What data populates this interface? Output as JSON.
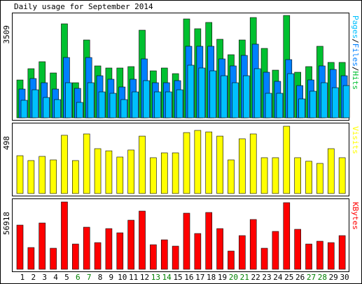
{
  "title": "Daily usage for September 2014",
  "legend_separator": "/",
  "chart_data": [
    {
      "type": "bar",
      "categories": [
        "1",
        "2",
        "3",
        "4",
        "5",
        "6",
        "7",
        "8",
        "9",
        "10",
        "11",
        "12",
        "13",
        "14",
        "15",
        "16",
        "17",
        "18",
        "19",
        "20",
        "21",
        "22",
        "23",
        "24",
        "25",
        "26",
        "27",
        "28",
        "29",
        "30"
      ],
      "category_colors": [
        "#000000",
        "#000000",
        "#000000",
        "#000000",
        "#000000",
        "#008000",
        "#008000",
        "#000000",
        "#000000",
        "#000000",
        "#000000",
        "#000000",
        "#008000",
        "#008000",
        "#000000",
        "#000000",
        "#000000",
        "#000000",
        "#000000",
        "#008000",
        "#008000",
        "#000000",
        "#000000",
        "#000000",
        "#000000",
        "#000000",
        "#008000",
        "#008000",
        "#000000",
        "#000000"
      ],
      "ylim": [
        0,
        3509
      ],
      "yticks": [
        3509
      ],
      "series": [
        {
          "name": "Hits",
          "color": "#00c030",
          "values": [
            1297,
            1683,
            1923,
            1538,
            3221,
            1202,
            2668,
            1779,
            1707,
            1707,
            1755,
            3004,
            1610,
            1707,
            1514,
            3389,
            3053,
            3269,
            2692,
            2163,
            2668,
            3437,
            2379,
            1634,
            3509,
            1562,
            1755,
            2452,
            1899,
            1899
          ]
        },
        {
          "name": "Files",
          "color": "#0080ff",
          "values": [
            985,
            1346,
            1202,
            985,
            2067,
            1009,
            2067,
            1442,
            1322,
            1057,
            1322,
            2019,
            1202,
            1202,
            1274,
            2452,
            2452,
            2452,
            2019,
            1779,
            2139,
            2524,
            1562,
            1250,
            1995,
            1105,
            1298,
            1779,
            1658,
            1442
          ]
        },
        {
          "name": "Pages",
          "color": "#00c0ff",
          "values": [
            601,
            961,
            697,
            625,
            1202,
            529,
            1202,
            889,
            841,
            625,
            889,
            1274,
            889,
            889,
            961,
            1803,
            1707,
            1610,
            1442,
            1202,
            1442,
            1683,
            841,
            841,
            1514,
            649,
            913,
            1202,
            1033,
            1105
          ]
        }
      ]
    },
    {
      "type": "bar",
      "ylim": [
        0,
        498
      ],
      "yticks": [
        498
      ],
      "series": [
        {
          "name": "Visits",
          "color": "#ffff00",
          "values": [
            280,
            244,
            275,
            249,
            431,
            244,
            441,
            332,
            316,
            270,
            322,
            425,
            265,
            301,
            301,
            451,
            467,
            456,
            425,
            249,
            405,
            441,
            265,
            265,
            498,
            265,
            239,
            223,
            332,
            265
          ]
        }
      ]
    },
    {
      "type": "bar",
      "ylim": [
        0,
        56918
      ],
      "yticks": [
        56918
      ],
      "series": [
        {
          "name": "KBytes",
          "color": "#ff0000",
          "values": [
            37352,
            18380,
            39131,
            17787,
            56918,
            21344,
            35574,
            22529,
            34388,
            30830,
            41503,
            49211,
            20751,
            24902,
            19566,
            47432,
            30237,
            48025,
            34388,
            15415,
            28459,
            42096,
            17787,
            32016,
            56325,
            33795,
            21344,
            23716,
            22529,
            28459
          ]
        }
      ]
    }
  ]
}
